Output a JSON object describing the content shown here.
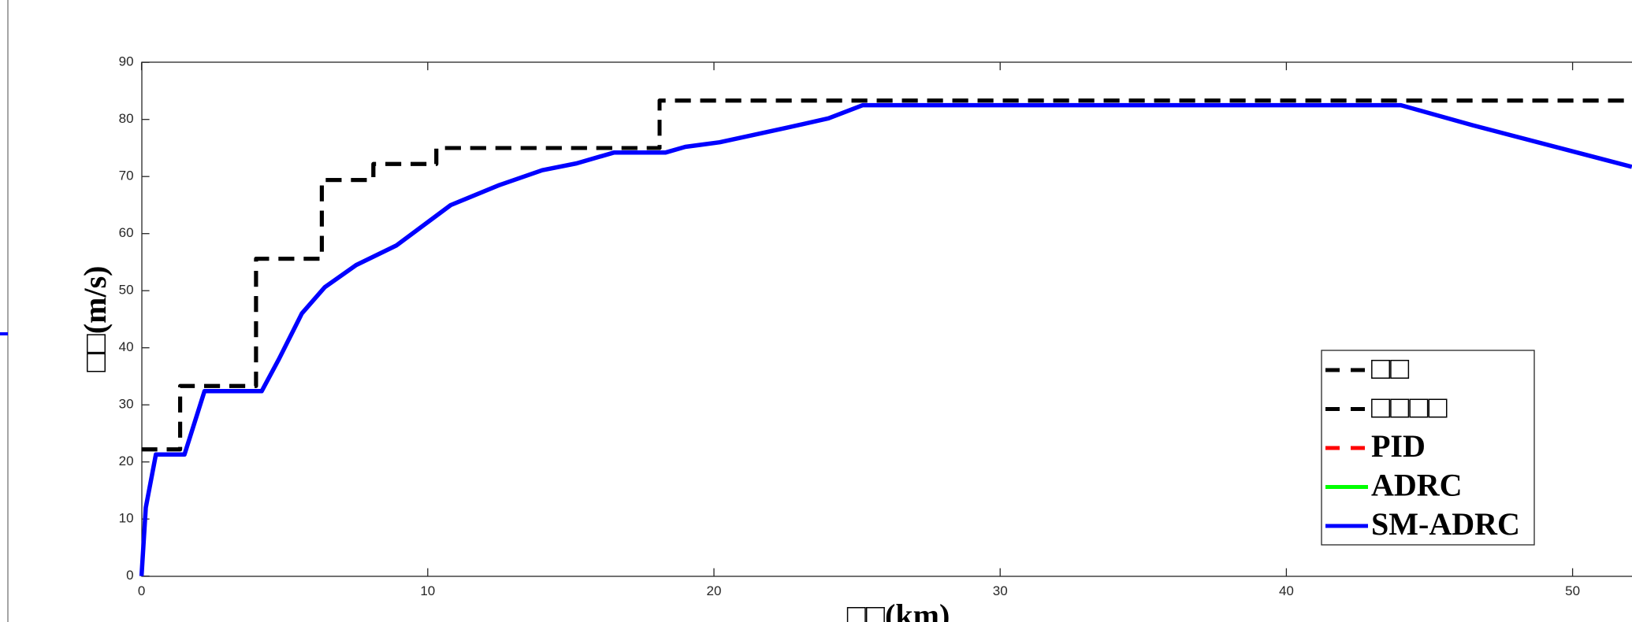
{
  "chart_data": {
    "type": "line",
    "xlabel": "□□(km)",
    "ylabel": "□□(m/s)",
    "xlim": [
      0,
      52.07
    ],
    "ylim": [
      0,
      90
    ],
    "xticks": [
      0,
      10,
      20,
      30,
      40,
      50
    ],
    "yticks": [
      0,
      10,
      20,
      30,
      40,
      50,
      60,
      70,
      80,
      90
    ],
    "legend": "lower right",
    "series": [
      {
        "name": "□□",
        "color": "#000000",
        "dash": true,
        "x": [
          0,
          1.35,
          1.35,
          4.0,
          4.0,
          6.3,
          6.3,
          8.1,
          8.1,
          10.3,
          10.3,
          18.1,
          18.1,
          52.07
        ],
        "values": [
          22.2,
          22.2,
          33.3,
          33.3,
          55.6,
          55.6,
          69.4,
          69.4,
          72.2,
          72.2,
          75,
          75,
          83.3,
          83.3
        ]
      },
      {
        "name": "□□□□",
        "color": "#000000",
        "dash": true,
        "x": [
          0,
          1.35,
          1.35,
          4.0,
          4.0,
          6.3,
          6.3,
          8.1,
          8.1,
          10.3,
          10.3,
          18.1,
          18.1,
          52.07
        ],
        "values": [
          22.2,
          22.2,
          33.3,
          33.3,
          55.6,
          55.6,
          69.4,
          69.4,
          72.2,
          72.2,
          75,
          75,
          83.3,
          83.3
        ]
      },
      {
        "name": "PID",
        "color": "#ff0000",
        "dash": true,
        "x": [
          0
        ],
        "values": [
          null
        ]
      },
      {
        "name": "ADRC",
        "color": "#00ff00",
        "dash": false,
        "x": [
          0
        ],
        "values": [
          null
        ]
      },
      {
        "name": "SM-ADRC",
        "color": "#0000ff",
        "dash": false,
        "x": [
          0,
          0.15,
          0.5,
          1.5,
          2.2,
          4.2,
          4.8,
          5.6,
          6.4,
          7.5,
          8.9,
          10.8,
          12.5,
          14.0,
          15.2,
          16.5,
          18.3,
          19.0,
          20.2,
          22.5,
          24.0,
          25.2,
          44.0,
          46.5,
          52.07
        ],
        "values": [
          0,
          12,
          21.3,
          21.3,
          32.4,
          32.4,
          38,
          46,
          50.6,
          54.5,
          57.9,
          65,
          68.5,
          71.1,
          72.3,
          74.2,
          74.2,
          75.2,
          76,
          78.5,
          80.2,
          82.5,
          82.5,
          79,
          71.7
        ]
      }
    ]
  }
}
